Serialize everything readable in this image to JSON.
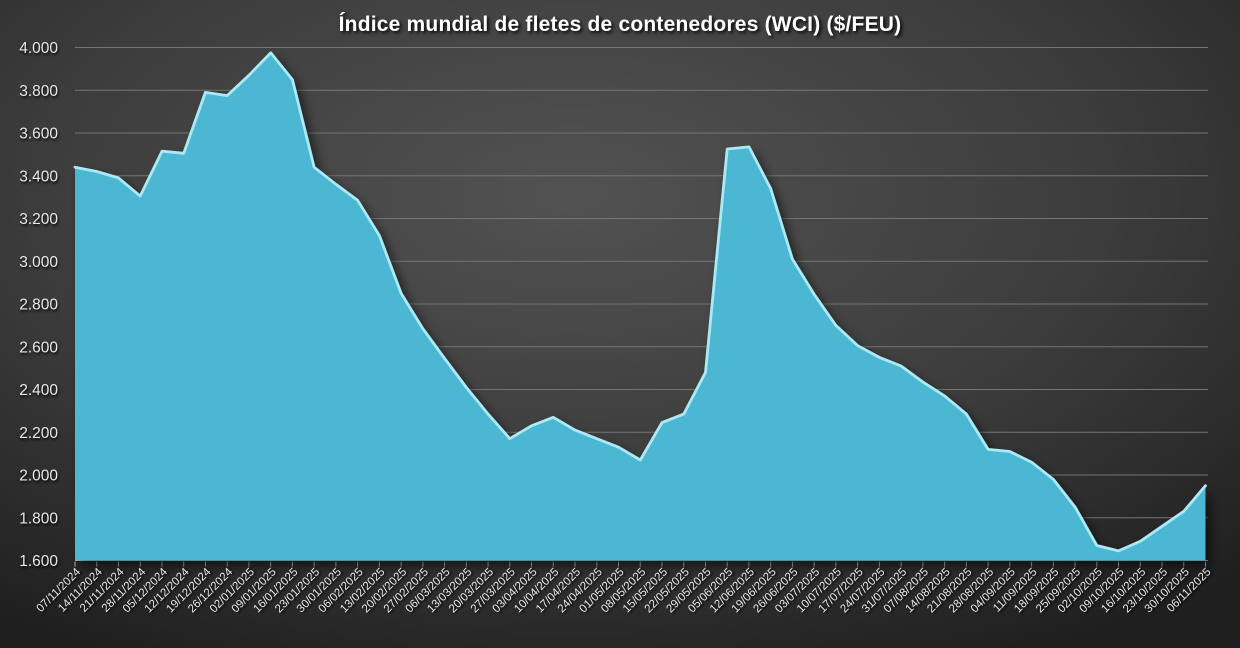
{
  "chart_data": {
    "type": "area",
    "title": "Índice mundial de fletes de contenedores (WCI) ($/FEU)",
    "series_name": "WCI",
    "x": [
      "07/11/2024",
      "14/11/2024",
      "21/11/2024",
      "28/11/2024",
      "05/12/2024",
      "12/12/2024",
      "19/12/2024",
      "26/12/2024",
      "02/01/2025",
      "09/01/2025",
      "16/01/2025",
      "23/01/2025",
      "30/01/2025",
      "06/02/2025",
      "13/02/2025",
      "20/02/2025",
      "27/02/2025",
      "06/03/2025",
      "13/03/2025",
      "20/03/2025",
      "27/03/2025",
      "03/04/2025",
      "10/04/2025",
      "17/04/2025",
      "24/04/2025",
      "01/05/2025",
      "08/05/2025",
      "15/05/2025",
      "22/05/2025",
      "29/05/2025",
      "05/06/2025",
      "12/06/2025",
      "19/06/2025",
      "26/06/2025",
      "03/07/2025",
      "10/07/2025",
      "17/07/2025",
      "24/07/2025",
      "31/07/2025",
      "07/08/2025",
      "14/08/2025",
      "21/08/2025",
      "28/08/2025",
      "04/09/2025",
      "11/09/2025",
      "18/09/2025",
      "25/09/2025",
      "02/10/2025",
      "09/10/2025",
      "16/10/2025",
      "23/10/2025",
      "30/10/2025",
      "06/11/2025"
    ],
    "values": [
      3440,
      3420,
      3390,
      3305,
      3515,
      3505,
      3790,
      3775,
      3870,
      3975,
      3850,
      3440,
      3360,
      3285,
      3120,
      2850,
      2685,
      2545,
      2410,
      2285,
      2170,
      2230,
      2270,
      2210,
      2170,
      2130,
      2070,
      2245,
      2285,
      2480,
      3525,
      3535,
      3340,
      3010,
      2845,
      2700,
      2605,
      2550,
      2510,
      2435,
      2370,
      2285,
      2120,
      2110,
      2060,
      1980,
      1850,
      1670,
      1645,
      1690,
      1760,
      1830,
      1950
    ],
    "ylim": [
      1600,
      4000
    ],
    "ytick_step": 200,
    "ytick_labels": [
      "1.600",
      "1.800",
      "2.000",
      "2.200",
      "2.400",
      "2.600",
      "2.800",
      "3.000",
      "3.200",
      "3.400",
      "3.600",
      "3.800",
      "4.000"
    ],
    "grid": true,
    "legend": false,
    "x_label_rotation_deg": 45
  },
  "colors": {
    "area_fill": "#4bb7d3",
    "area_highlight": "#abe9f5",
    "background_center": "#525252",
    "background_mid": "#3c3c3c",
    "background_edge": "#1f1f1f",
    "gridline": "#757575",
    "axis_line": "#b9b9b9",
    "title_text": "#ffffff",
    "axis_text": "#e8e8e8"
  }
}
